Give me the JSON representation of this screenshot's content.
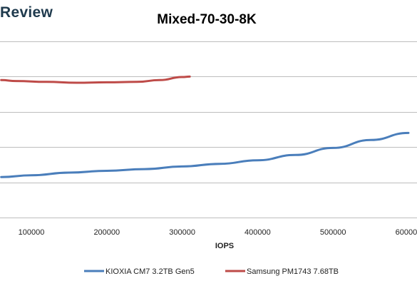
{
  "brand": "Review",
  "chart_data": {
    "type": "line",
    "title": "Mixed-70-30-8K",
    "xlabel": "IOPS",
    "ylabel": "",
    "xlim": [
      60000,
      600000
    ],
    "ylim": [
      0,
      2
    ],
    "x_ticks": [
      "100000",
      "200000",
      "300000",
      "400000",
      "500000",
      "600000"
    ],
    "x_tick_values": [
      100000,
      200000,
      300000,
      400000,
      500000,
      600000
    ],
    "y_gridlines": [
      0.4,
      0.8,
      1.2,
      1.6,
      2.0
    ],
    "grid": true,
    "legend_position": "bottom",
    "series": [
      {
        "name": "KIOXIA CM7 3.2TB Gen5",
        "color": "#4a7ebb",
        "x": [
          60000,
          100000,
          150000,
          200000,
          250000,
          300000,
          350000,
          400000,
          450000,
          500000,
          550000,
          600000
        ],
        "y": [
          0.46,
          0.48,
          0.51,
          0.53,
          0.55,
          0.58,
          0.61,
          0.65,
          0.71,
          0.79,
          0.88,
          0.96
        ]
      },
      {
        "name": "Samsung PM1743 7.68TB",
        "color": "#be4b48",
        "x": [
          60000,
          80000,
          120000,
          160000,
          200000,
          240000,
          270000,
          300000,
          310000
        ],
        "y": [
          1.56,
          1.55,
          1.54,
          1.53,
          1.535,
          1.54,
          1.56,
          1.595,
          1.6
        ]
      }
    ]
  }
}
